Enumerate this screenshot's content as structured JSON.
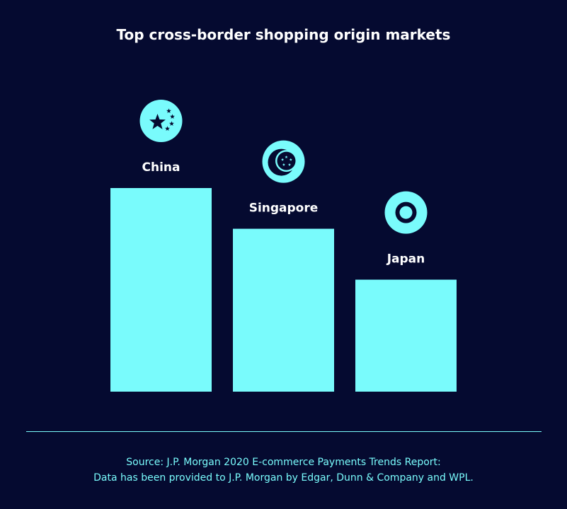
{
  "chart_data": {
    "type": "bar",
    "title": "Top cross-border shopping origin markets",
    "categories": [
      "China",
      "Singapore",
      "Japan"
    ],
    "values": [
      3,
      2.4,
      1.65
    ],
    "icons": [
      "china-flag-icon",
      "singapore-flag-icon",
      "japan-flag-icon"
    ],
    "ylim": [
      0,
      3
    ],
    "grid": false,
    "bar_color": "#79fbfc",
    "background_color": "#050a30",
    "label_color": "#ffffff"
  },
  "source": {
    "line1": "Source: J.P. Morgan 2020 E-commerce Payments Trends Report:",
    "line2": "Data has been provided to J.P. Morgan by Edgar, Dunn & Company and WPL."
  }
}
